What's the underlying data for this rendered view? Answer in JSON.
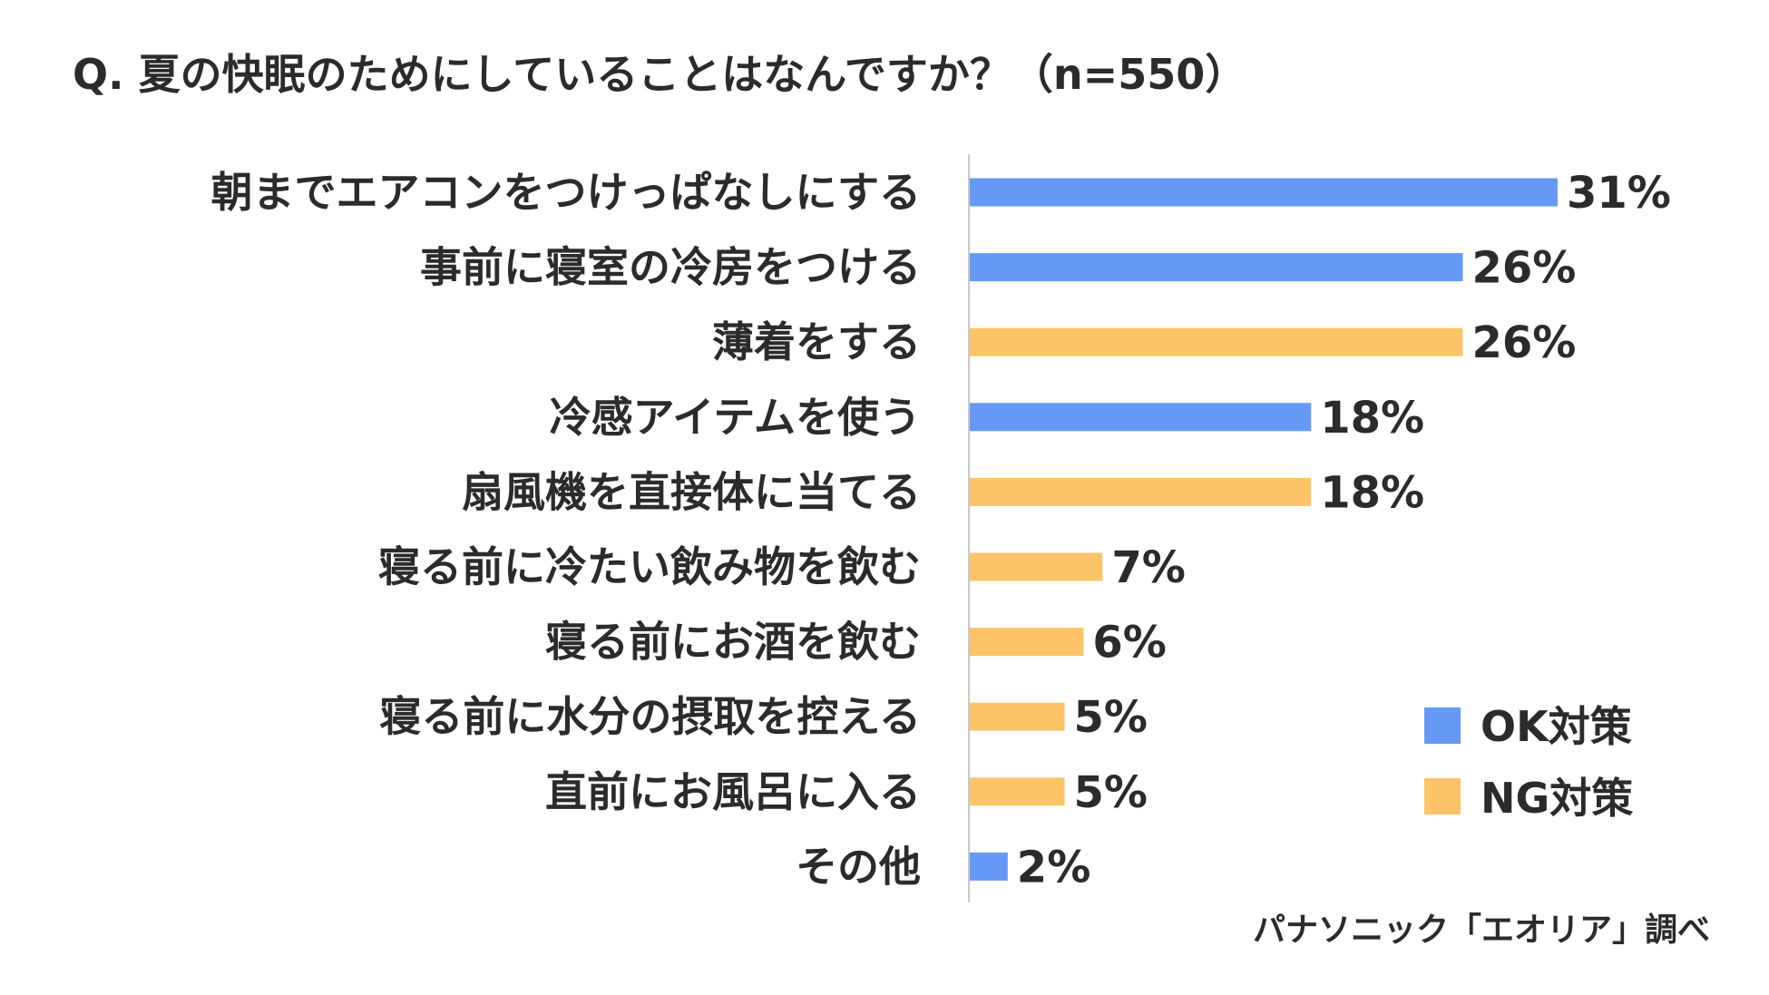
{
  "chart_data": {
    "type": "bar",
    "orientation": "horizontal",
    "title": "Q. 夏の快眠のためにしていることはなんですか？（n=550）",
    "categories": [
      "朝までエアコンをつけっぱなしにする",
      "事前に寝室の冷房をつける",
      "薄着をする",
      "冷感アイテムを使う",
      "扇風機を直接体に当てる",
      "寝る前に冷たい飲み物を飲む",
      "寝る前にお酒を飲む",
      "寝る前に水分の摂取を控える",
      "直前にお風呂に入る",
      "その他"
    ],
    "values": [
      31,
      26,
      26,
      18,
      18,
      7,
      6,
      5,
      5,
      2
    ],
    "value_labels": [
      "31%",
      "26%",
      "26%",
      "18%",
      "18%",
      "7%",
      "6%",
      "5%",
      "5%",
      "2%"
    ],
    "groups": [
      "ok",
      "ok",
      "ng",
      "ok",
      "ng",
      "ng",
      "ng",
      "ng",
      "ng",
      "ok"
    ],
    "xlim": [
      0,
      31
    ],
    "legend": [
      {
        "key": "ok",
        "label": "OK対策",
        "color": "#6699f5"
      },
      {
        "key": "ng",
        "label": "NG対策",
        "color": "#fcc467"
      }
    ],
    "legend_position": "bottom-right",
    "source": "パナソニック「エオリア」調べ"
  }
}
